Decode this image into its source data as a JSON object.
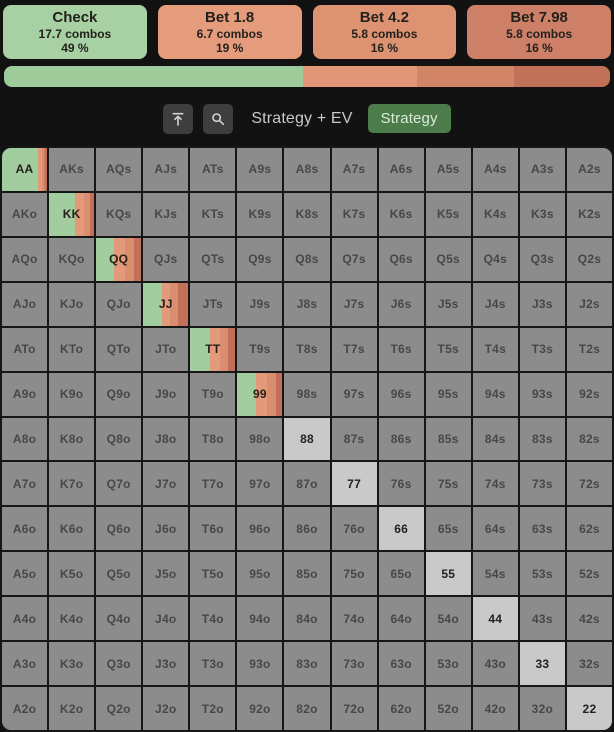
{
  "actions": [
    {
      "label": "Check",
      "combos": "17.7 combos",
      "pct": "49 %",
      "color": "#a7d0a3"
    },
    {
      "label": "Bet 1.8",
      "combos": "6.7 combos",
      "pct": "19 %",
      "color": "#e59c7d"
    },
    {
      "label": "Bet 4.2",
      "combos": "5.8 combos",
      "pct": "16 %",
      "color": "#dd9272"
    },
    {
      "label": "Bet 7.98",
      "combos": "5.8 combos",
      "pct": "16 %",
      "color": "#cd7f67"
    }
  ],
  "distribution_bar": {
    "segments": [
      {
        "action": "Check",
        "color": "#9fcb9b",
        "pct": 49.4
      },
      {
        "action": "Bet 1.8",
        "color": "#e29878",
        "pct": 18.8
      },
      {
        "action": "Bet 4.2",
        "color": "#d18466",
        "pct": 15.9
      },
      {
        "action": "Bet 7.98",
        "color": "#c17157",
        "pct": 15.9
      }
    ]
  },
  "toolbar": {
    "icons": [
      "align-top-icon",
      "zoom-icon"
    ],
    "mode_label": "Strategy + EV",
    "strategy_label": "Strategy",
    "strategy_color": "#4c7c4a"
  },
  "grid": {
    "rows": [
      [
        "AA",
        "AKs",
        "AQs",
        "AJs",
        "ATs",
        "A9s",
        "A8s",
        "A7s",
        "A6s",
        "A5s",
        "A4s",
        "A3s",
        "A2s"
      ],
      [
        "AKo",
        "KK",
        "KQs",
        "KJs",
        "KTs",
        "K9s",
        "K8s",
        "K7s",
        "K6s",
        "K5s",
        "K4s",
        "K3s",
        "K2s"
      ],
      [
        "AQo",
        "KQo",
        "QQ",
        "QJs",
        "QTs",
        "Q9s",
        "Q8s",
        "Q7s",
        "Q6s",
        "Q5s",
        "Q4s",
        "Q3s",
        "Q2s"
      ],
      [
        "AJo",
        "KJo",
        "QJo",
        "JJ",
        "JTs",
        "J9s",
        "J8s",
        "J7s",
        "J6s",
        "J5s",
        "J4s",
        "J3s",
        "J2s"
      ],
      [
        "ATo",
        "KTo",
        "QTo",
        "JTo",
        "TT",
        "T9s",
        "T8s",
        "T7s",
        "T6s",
        "T5s",
        "T4s",
        "T3s",
        "T2s"
      ],
      [
        "A9o",
        "K9o",
        "Q9o",
        "J9o",
        "T9o",
        "99",
        "98s",
        "97s",
        "96s",
        "95s",
        "94s",
        "93s",
        "92s"
      ],
      [
        "A8o",
        "K8o",
        "Q8o",
        "J8o",
        "T8o",
        "98o",
        "88",
        "87s",
        "86s",
        "85s",
        "84s",
        "83s",
        "82s"
      ],
      [
        "A7o",
        "K7o",
        "Q7o",
        "J7o",
        "T7o",
        "97o",
        "87o",
        "77",
        "76s",
        "75s",
        "74s",
        "73s",
        "72s"
      ],
      [
        "A6o",
        "K6o",
        "Q6o",
        "J6o",
        "T6o",
        "96o",
        "86o",
        "76o",
        "66",
        "65s",
        "64s",
        "63s",
        "62s"
      ],
      [
        "A5o",
        "K5o",
        "Q5o",
        "J5o",
        "T5o",
        "95o",
        "85o",
        "75o",
        "65o",
        "55",
        "54s",
        "53s",
        "52s"
      ],
      [
        "A4o",
        "K4o",
        "Q4o",
        "J4o",
        "T4o",
        "94o",
        "84o",
        "74o",
        "64o",
        "54o",
        "44",
        "43s",
        "42s"
      ],
      [
        "A3o",
        "K3o",
        "Q3o",
        "J3o",
        "T3o",
        "93o",
        "83o",
        "73o",
        "63o",
        "53o",
        "43o",
        "33",
        "32s"
      ],
      [
        "A2o",
        "K2o",
        "Q2o",
        "J2o",
        "T2o",
        "92o",
        "82o",
        "72o",
        "62o",
        "52o",
        "42o",
        "32o",
        "22"
      ]
    ],
    "mixed_pairs": {
      "AA": [
        80,
        9,
        6,
        5
      ],
      "KK": [
        58,
        20,
        13,
        9
      ],
      "QQ": [
        40,
        25,
        20,
        15
      ],
      "JJ": [
        42,
        18,
        18,
        22
      ],
      "TT": [
        45,
        22,
        18,
        15
      ],
      "99": [
        42,
        25,
        20,
        13
      ]
    },
    "light_pairs": [
      "88",
      "77",
      "66",
      "55",
      "44",
      "33",
      "22"
    ],
    "colors": {
      "check": "#a2cd9e",
      "bet18": "#e39a7b",
      "bet42": "#d88e6f",
      "bet798": "#c2705a",
      "default_bg": "#8c8c8c",
      "light_bg": "#c9c9c9",
      "border": "#161616"
    }
  }
}
